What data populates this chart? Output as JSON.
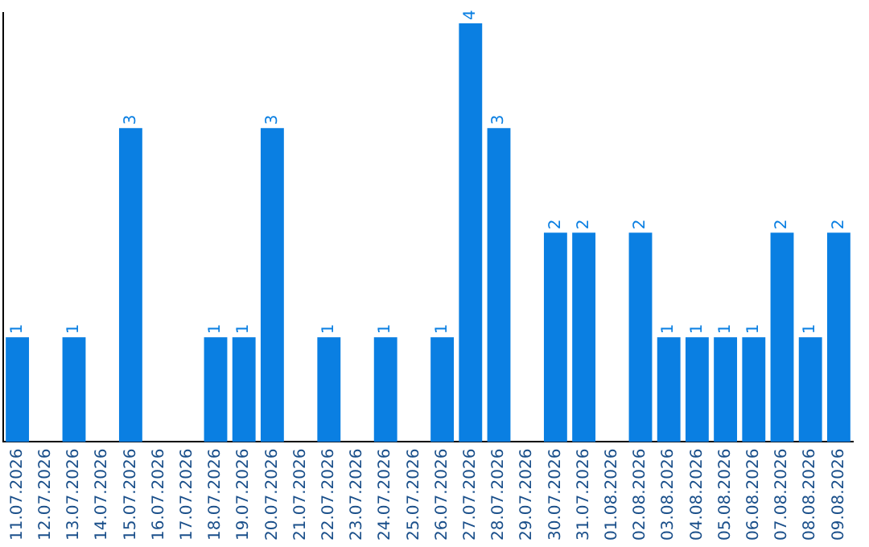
{
  "chart_data": {
    "type": "bar",
    "categories": [
      "11.07.2026",
      "12.07.2026",
      "13.07.2026",
      "14.07.2026",
      "15.07.2026",
      "16.07.2026",
      "17.07.2026",
      "18.07.2026",
      "19.07.2026",
      "20.07.2026",
      "21.07.2026",
      "22.07.2026",
      "23.07.2026",
      "24.07.2026",
      "25.07.2026",
      "26.07.2026",
      "27.07.2026",
      "28.07.2026",
      "29.07.2026",
      "30.07.2026",
      "31.07.2026",
      "01.08.2026",
      "02.08.2026",
      "03.08.2026",
      "04.08.2026",
      "05.08.2026",
      "06.08.2026",
      "07.08.2026",
      "08.08.2026",
      "09.08.2026"
    ],
    "values": [
      1,
      0,
      1,
      0,
      3,
      0,
      0,
      1,
      1,
      3,
      0,
      1,
      0,
      1,
      0,
      1,
      4,
      3,
      0,
      2,
      2,
      0,
      2,
      1,
      1,
      1,
      1,
      2,
      1,
      2
    ],
    "value_labels": [
      "1",
      null,
      "1",
      null,
      "3",
      null,
      null,
      "1",
      "1",
      "3",
      null,
      "1",
      null,
      "1",
      null,
      "1",
      "4",
      "3",
      null,
      "2",
      "2",
      null,
      "2",
      "1",
      "1",
      "1",
      "1",
      "2",
      "1",
      "2"
    ],
    "color": "#0a7fe2",
    "ylim": [
      0,
      4.1
    ],
    "tick_labels": "x",
    "grid": false,
    "legend": false
  }
}
